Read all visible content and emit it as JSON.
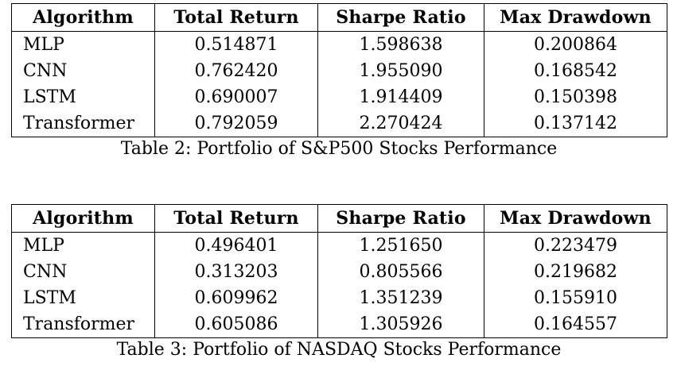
{
  "tables": [
    {
      "headers": [
        "Algorithm",
        "Total Return",
        "Sharpe Ratio",
        "Max Drawdown"
      ],
      "rows": [
        [
          "MLP",
          "0.514871",
          "1.598638",
          "0.200864"
        ],
        [
          "CNN",
          "0.762420",
          "1.955090",
          "0.168542"
        ],
        [
          "LSTM",
          "0.690007",
          "1.914409",
          "0.150398"
        ],
        [
          "Transformer",
          "0.792059",
          "2.270424",
          "0.137142"
        ]
      ],
      "caption": "Table 2: Portfolio of S&P500 Stocks Performance"
    },
    {
      "headers": [
        "Algorithm",
        "Total Return",
        "Sharpe Ratio",
        "Max Drawdown"
      ],
      "rows": [
        [
          "MLP",
          "0.496401",
          "1.251650",
          "0.223479"
        ],
        [
          "CNN",
          "0.313203",
          "0.805566",
          "0.219682"
        ],
        [
          "LSTM",
          "0.609962",
          "1.351239",
          "0.155910"
        ],
        [
          "Transformer",
          "0.605086",
          "1.305926",
          "0.164557"
        ]
      ],
      "caption": "Table 3: Portfolio of NASDAQ Stocks Performance"
    }
  ]
}
